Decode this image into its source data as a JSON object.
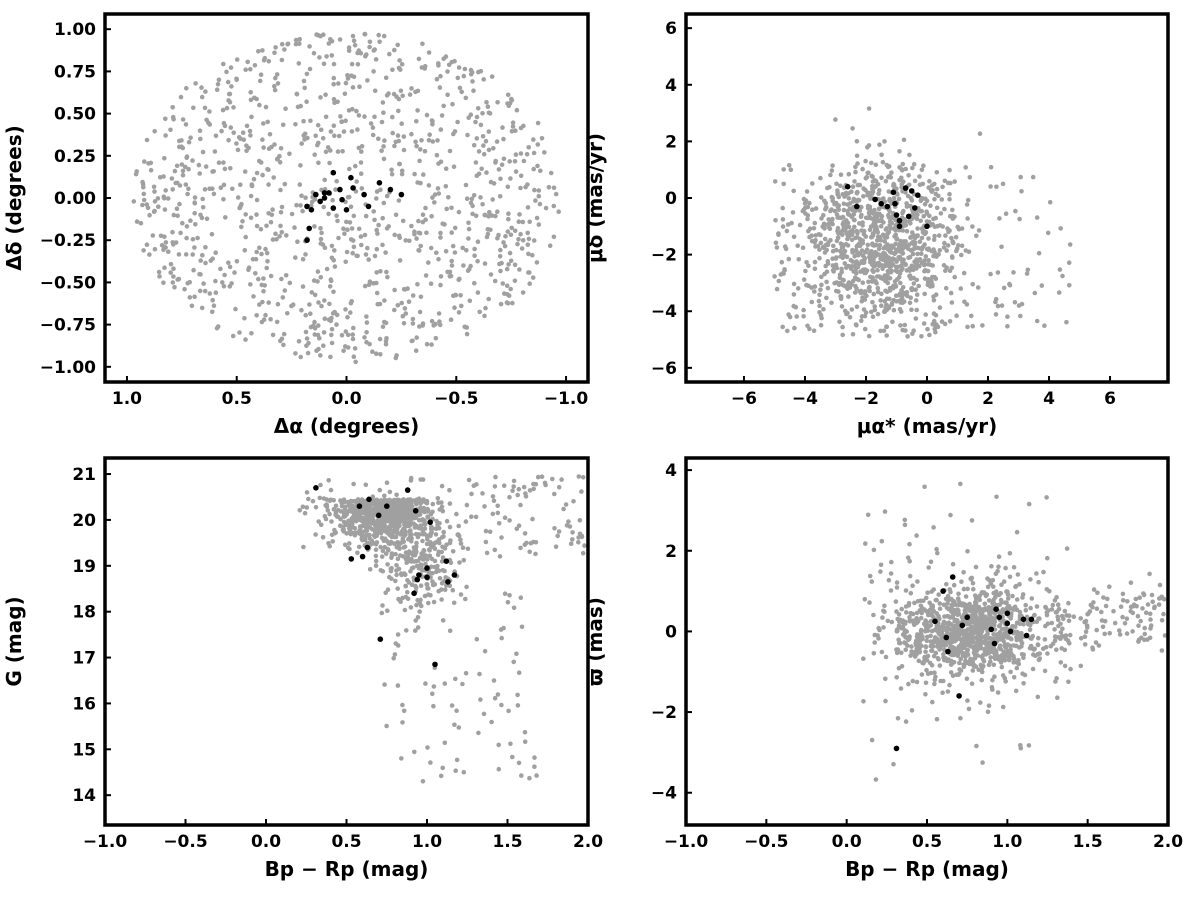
{
  "colors": {
    "field_stars": "#a0a0a0",
    "cluster_members": "#000000",
    "frame": "#000000"
  },
  "chart_data": [
    {
      "type": "scatter",
      "xlabel": "Δα (degrees)",
      "ylabel": "Δδ (degrees)",
      "xlim": [
        1.1,
        -1.1
      ],
      "ylim": [
        -1.09,
        1.09
      ],
      "x_reversed": true,
      "xticks": [
        1.0,
        0.5,
        0.0,
        -0.5,
        -1.0
      ],
      "xtick_labels": [
        "1.0",
        "0.5",
        "0.0",
        "−0.5",
        "−1.0"
      ],
      "yticks": [
        -1.0,
        -0.75,
        -0.5,
        -0.25,
        0.0,
        0.25,
        0.5,
        0.75,
        1.0
      ],
      "ytick_labels": [
        "−1.00",
        "−0.75",
        "−0.50",
        "−0.25",
        "0.00",
        "0.25",
        "0.50",
        "0.75",
        "1.00"
      ],
      "grid": false,
      "field_distribution": "approximately uniform within a circle of radius 1 degree centred at (0, 0)",
      "members": [
        [
          0.06,
          0.15
        ],
        [
          0.14,
          0.02
        ],
        [
          0.12,
          -0.02
        ],
        [
          0.1,
          0.0
        ],
        [
          0.16,
          -0.07
        ],
        [
          0.18,
          -0.05
        ],
        [
          0.1,
          0.03
        ],
        [
          0.06,
          -0.06
        ],
        [
          0.03,
          0.05
        ],
        [
          0.02,
          -0.01
        ],
        [
          -0.02,
          0.12
        ],
        [
          -0.03,
          0.06
        ],
        [
          -0.08,
          0.02
        ],
        [
          -0.1,
          -0.05
        ],
        [
          -0.15,
          0.09
        ],
        [
          -0.2,
          0.05
        ],
        [
          -0.25,
          0.02
        ],
        [
          0.0,
          -0.07
        ],
        [
          0.18,
          -0.25
        ],
        [
          0.17,
          -0.18
        ],
        [
          0.08,
          0.03
        ]
      ]
    },
    {
      "type": "scatter",
      "xlabel": "μα* (mas/yr)",
      "ylabel": "μδ (mas/yr)",
      "xlim": [
        -7.9,
        7.9
      ],
      "ylim": [
        -6.5,
        6.5
      ],
      "xticks": [
        -6,
        -4,
        -2,
        0,
        2,
        4,
        6
      ],
      "xtick_labels": [
        "−6",
        "−4",
        "−2",
        "0",
        "2",
        "4",
        "6"
      ],
      "yticks": [
        -6,
        -4,
        -2,
        0,
        2,
        4,
        6
      ],
      "ytick_labels": [
        "−6",
        "−4",
        "−2",
        "0",
        "2",
        "4",
        "6"
      ],
      "grid": false,
      "field_distribution": "dense cloud centred near (-1.5, -1.5), spanning roughly -5 to 5 in μα* and -5 to 4.5 in μδ",
      "members": [
        [
          -2.6,
          0.4
        ],
        [
          -2.3,
          -0.3
        ],
        [
          -1.7,
          -0.05
        ],
        [
          -1.5,
          -0.2
        ],
        [
          -1.3,
          -0.3
        ],
        [
          -1.1,
          0.2
        ],
        [
          -1.0,
          -0.6
        ],
        [
          -0.9,
          -0.8
        ],
        [
          -0.9,
          -1.0
        ],
        [
          -0.7,
          0.35
        ],
        [
          -0.6,
          -0.65
        ],
        [
          -0.5,
          0.25
        ],
        [
          -0.4,
          -0.35
        ],
        [
          -0.3,
          0.1
        ],
        [
          0.0,
          -1.0
        ],
        [
          -1.05,
          -0.2
        ]
      ]
    },
    {
      "type": "scatter",
      "xlabel": "Bp − Rp (mag)",
      "ylabel": "G (mag)",
      "xlim": [
        -1.0,
        2.0
      ],
      "ylim": [
        13.35,
        21.35
      ],
      "xticks": [
        -1.0,
        -0.5,
        0.0,
        0.5,
        1.0,
        1.5,
        2.0
      ],
      "xtick_labels": [
        "−1.0",
        "−0.5",
        "0.0",
        "0.5",
        "1.0",
        "1.5",
        "2.0"
      ],
      "yticks": [
        14,
        15,
        16,
        17,
        18,
        19,
        20,
        21
      ],
      "ytick_labels": [
        "14",
        "15",
        "16",
        "17",
        "18",
        "19",
        "20",
        "21"
      ],
      "grid": false,
      "field_distribution": "densest at colour 0.5–1.0 and G 19.5–20.8, with a fainter branch near colour 1.0 and G 18–19.5",
      "members": [
        [
          0.31,
          20.7
        ],
        [
          0.58,
          20.3
        ],
        [
          0.64,
          20.45
        ],
        [
          0.7,
          20.1
        ],
        [
          0.75,
          20.3
        ],
        [
          0.88,
          20.65
        ],
        [
          0.93,
          20.2
        ],
        [
          1.02,
          19.95
        ],
        [
          0.53,
          19.15
        ],
        [
          0.6,
          19.2
        ],
        [
          0.63,
          19.4
        ],
        [
          0.71,
          17.4
        ],
        [
          0.92,
          18.4
        ],
        [
          0.94,
          18.7
        ],
        [
          0.95,
          18.8
        ],
        [
          1.0,
          18.75
        ],
        [
          1.0,
          18.95
        ],
        [
          1.05,
          16.85
        ],
        [
          1.12,
          19.1
        ],
        [
          1.13,
          18.65
        ],
        [
          1.17,
          18.8
        ]
      ]
    },
    {
      "type": "scatter",
      "xlabel": "Bp − Rp (mag)",
      "ylabel": "ϖ (mas)",
      "xlim": [
        -1.0,
        2.0
      ],
      "ylim": [
        -4.8,
        4.3
      ],
      "xticks": [
        -1.0,
        -0.5,
        0.0,
        0.5,
        1.0,
        1.5,
        2.0
      ],
      "xtick_labels": [
        "−1.0",
        "−0.5",
        "0.0",
        "0.5",
        "1.0",
        "1.5",
        "2.0"
      ],
      "yticks": [
        -4,
        -2,
        0,
        2,
        4
      ],
      "ytick_labels": [
        "−4",
        "−2",
        "0",
        "2",
        "4"
      ],
      "grid": false,
      "field_distribution": "horizontal band centred near ϖ = 0 for colour 0.4–1.2, extending to colour 2.0",
      "members": [
        [
          0.31,
          -2.9
        ],
        [
          0.55,
          0.25
        ],
        [
          0.6,
          1.0
        ],
        [
          0.62,
          -0.15
        ],
        [
          0.63,
          -0.5
        ],
        [
          0.66,
          1.35
        ],
        [
          0.7,
          -1.6
        ],
        [
          0.72,
          0.15
        ],
        [
          0.75,
          0.35
        ],
        [
          0.9,
          0.05
        ],
        [
          0.92,
          -0.3
        ],
        [
          0.93,
          0.55
        ],
        [
          0.95,
          0.35
        ],
        [
          1.0,
          0.45
        ],
        [
          1.0,
          0.2
        ],
        [
          1.02,
          0.0
        ],
        [
          1.1,
          0.3
        ],
        [
          1.12,
          -0.1
        ],
        [
          1.15,
          0.3
        ]
      ]
    }
  ]
}
